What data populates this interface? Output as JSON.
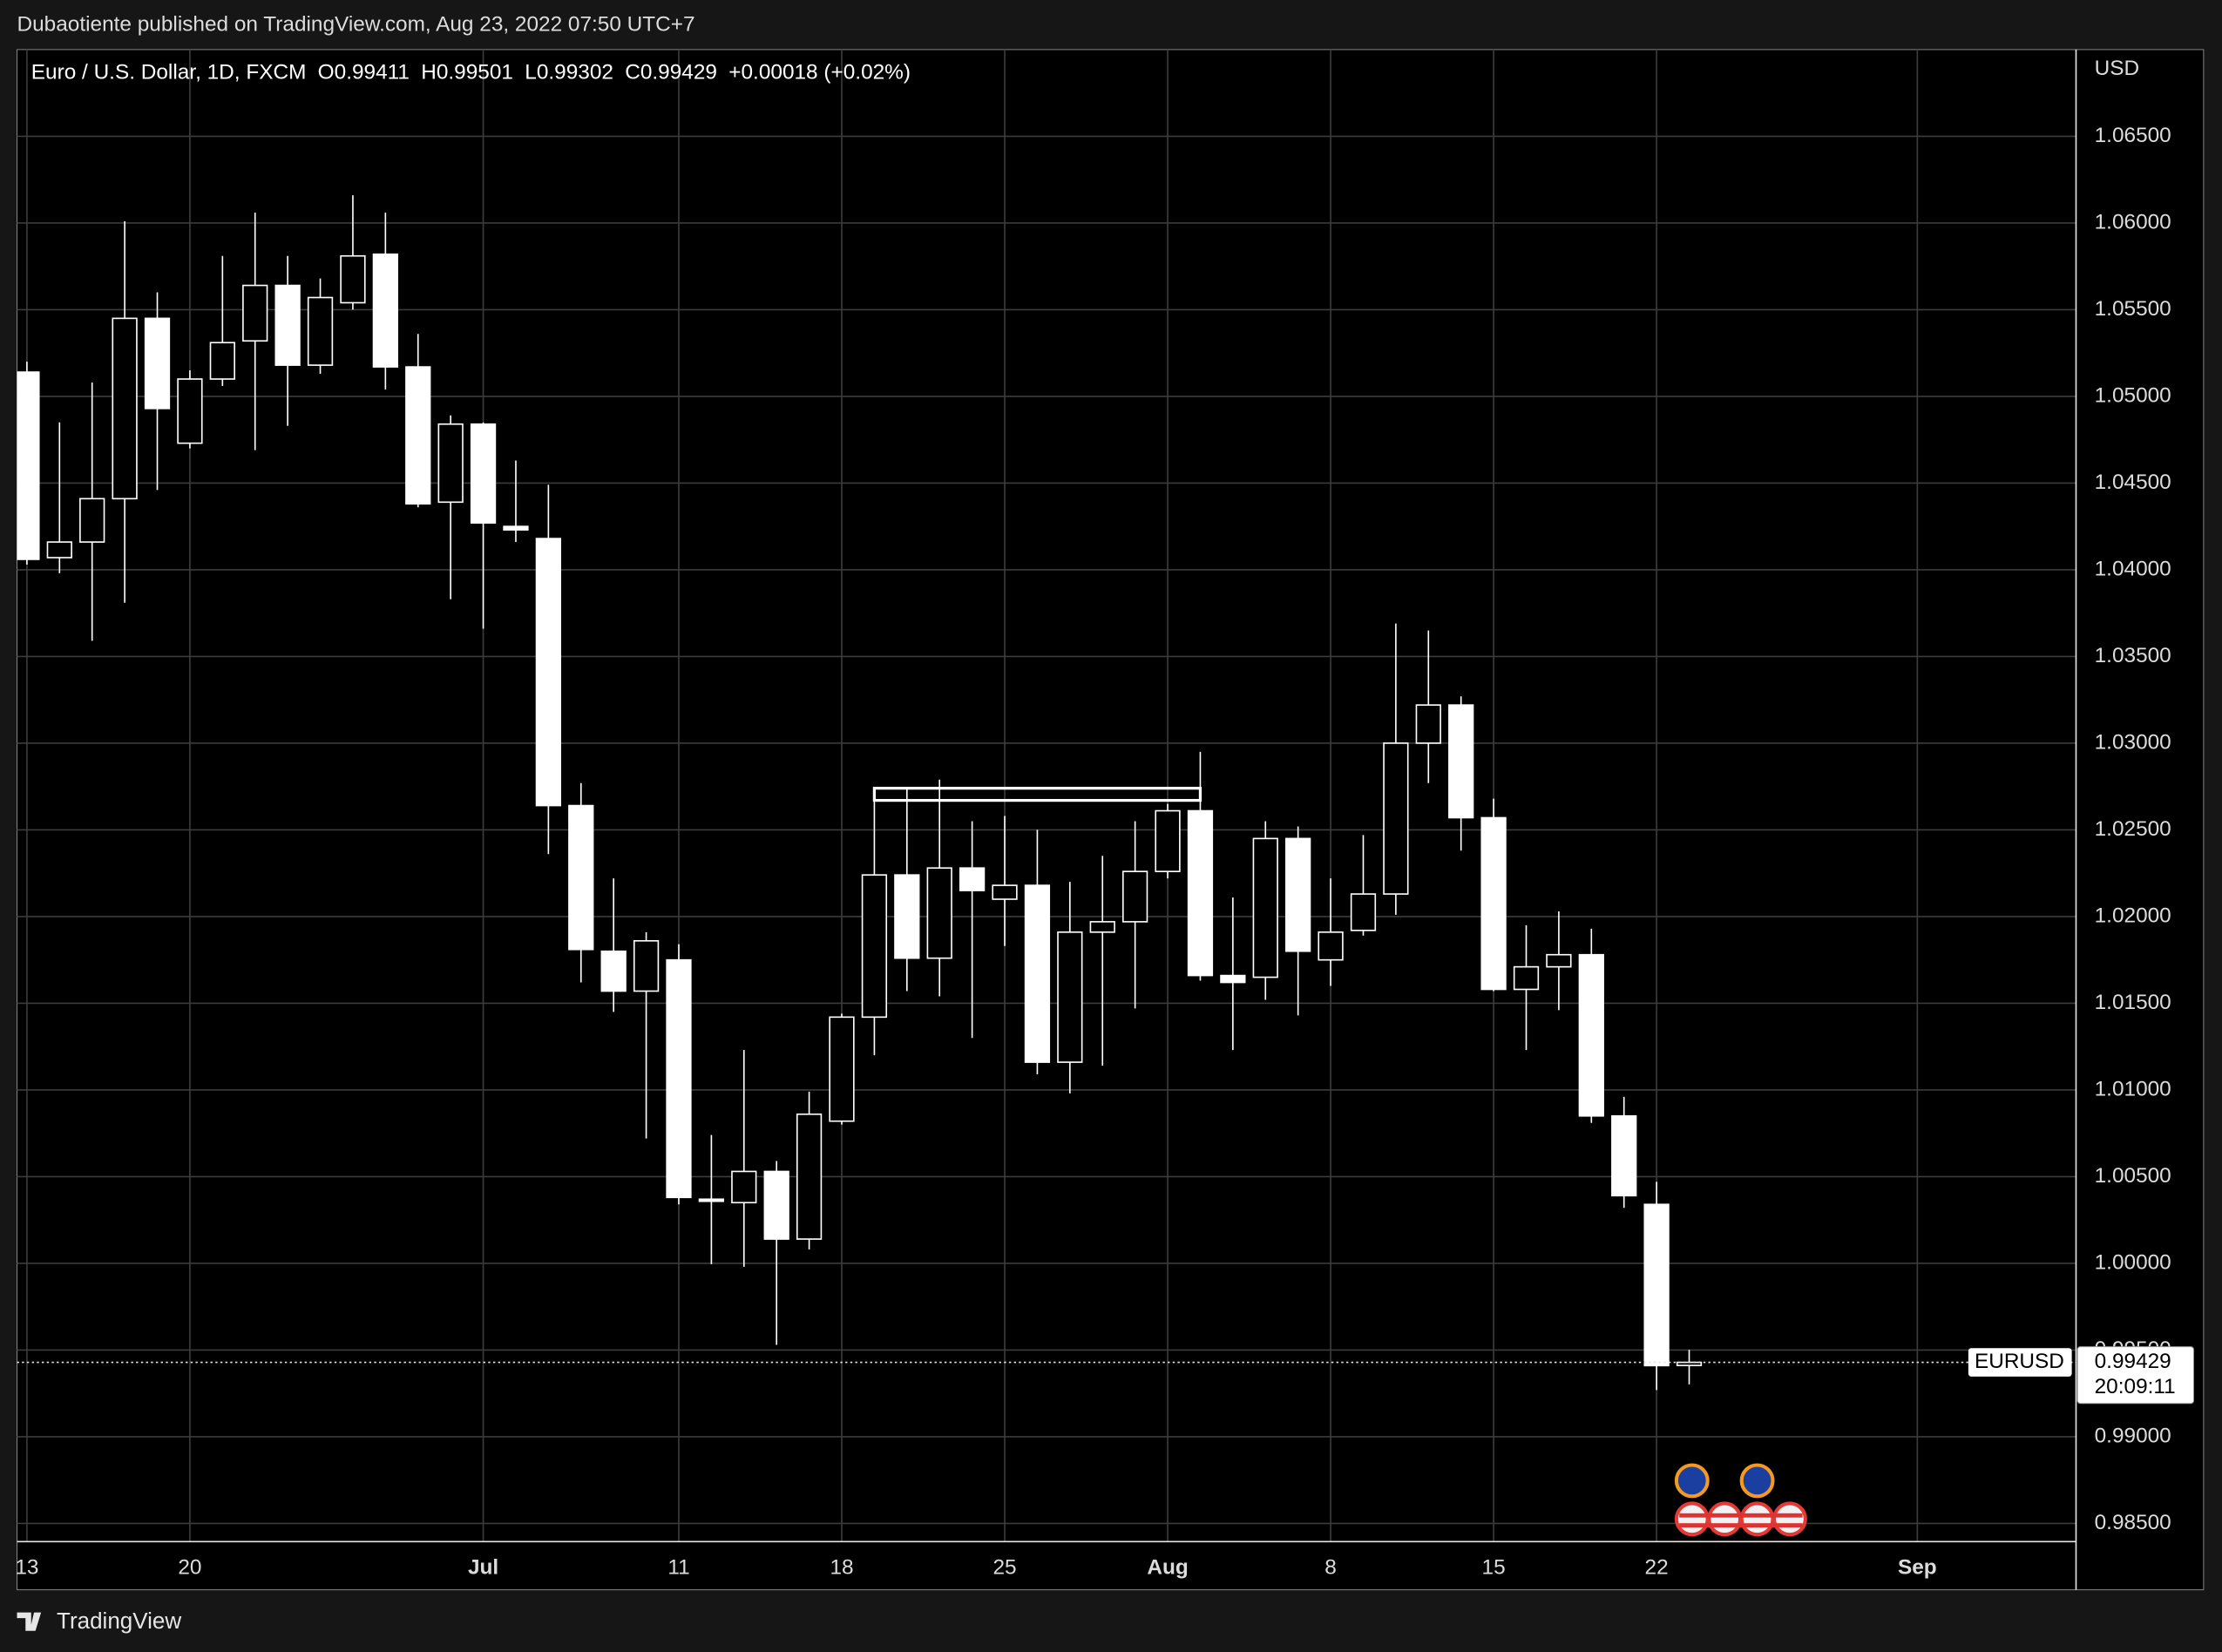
{
  "header": {
    "attribution": "Dubaotiente published on TradingView.com, Aug 23, 2022 07:50 UTC+7",
    "instrument": "Euro / U.S. Dollar, 1D, FXCM",
    "ohlc_labels": [
      "O",
      "H",
      "L",
      "C"
    ],
    "change": "+0.00018 (+0.02%)"
  },
  "chart_data": {
    "type": "candlestick",
    "categories": [
      "13",
      null,
      null,
      null,
      null,
      "20",
      null,
      null,
      null,
      null,
      null,
      null,
      null,
      null,
      "Jul",
      null,
      null,
      null,
      null,
      null,
      "11",
      null,
      null,
      null,
      null,
      "18",
      null,
      null,
      null,
      null,
      "25",
      null,
      null,
      null,
      null,
      "Aug",
      null,
      null,
      null,
      null,
      "8",
      null,
      null,
      null,
      null,
      "15",
      null,
      null,
      null,
      null,
      "22",
      null,
      null,
      null,
      null,
      null,
      null,
      null,
      "Sep"
    ],
    "open": [
      1.0514,
      1.0407,
      1.0416,
      1.0441,
      1.0545,
      1.0473,
      1.051,
      1.0532,
      1.0564,
      1.0518,
      1.0554,
      1.0582,
      1.0517,
      1.0439,
      1.0484,
      1.0425,
      1.0418,
      1.0264,
      1.018,
      1.0157,
      1.0175,
      1.0037,
      1.0035,
      1.0053,
      1.0014,
      1.0082,
      1.0142,
      1.0224,
      1.0176,
      1.0228,
      1.021,
      1.0218,
      1.0116,
      1.0191,
      1.0197,
      1.0226,
      1.0261,
      1.0166,
      1.0165,
      1.0245,
      1.0175,
      1.0192,
      1.0213,
      1.03,
      1.0322,
      1.0257,
      1.0158,
      1.0171,
      1.0178,
      1.0085,
      1.0034,
      0.99411,
      null,
      null,
      null,
      null,
      null,
      null,
      null
    ],
    "high": [
      1.052,
      1.0485,
      1.0508,
      1.0601,
      1.056,
      1.0515,
      1.0581,
      1.0606,
      1.0581,
      1.0568,
      1.0616,
      1.0606,
      1.0536,
      1.0489,
      1.0485,
      1.0463,
      1.0449,
      1.0277,
      1.0222,
      1.0191,
      1.0184,
      1.0074,
      1.0123,
      1.0059,
      1.0099,
      1.0144,
      1.0274,
      1.0274,
      1.0279,
      1.0255,
      1.0258,
      1.025,
      1.022,
      1.0235,
      1.0255,
      1.0265,
      1.0295,
      1.0211,
      1.0255,
      1.0252,
      1.0222,
      1.0247,
      1.0369,
      1.0365,
      1.0327,
      1.0268,
      1.0195,
      1.0203,
      1.0193,
      1.0096,
      1.0047,
      0.99501,
      null,
      null,
      null,
      null,
      null,
      null,
      null
    ],
    "low": [
      1.0403,
      1.0398,
      1.0359,
      1.0381,
      1.0446,
      1.047,
      1.0506,
      1.0469,
      1.0483,
      1.0513,
      1.055,
      1.0504,
      1.0436,
      1.0383,
      1.0366,
      1.0416,
      1.0236,
      1.0162,
      1.0145,
      1.0072,
      1.0034,
      0.99995,
      0.9998,
      0.9953,
      1.0008,
      1.008,
      1.012,
      1.0157,
      1.0154,
      1.013,
      1.0183,
      1.0109,
      1.0098,
      1.0114,
      1.0147,
      1.0222,
      1.0163,
      1.0123,
      1.0152,
      1.0143,
      1.016,
      1.0189,
      1.0201,
      1.0277,
      1.0238,
      1.0157,
      1.0123,
      1.0146,
      1.0081,
      1.0032,
      0.99269,
      0.99302,
      null,
      null,
      null,
      null,
      null,
      null,
      null
    ],
    "close": [
      1.0406,
      1.0416,
      1.0441,
      1.0545,
      1.0493,
      1.051,
      1.0531,
      1.0564,
      1.0518,
      1.0557,
      1.0581,
      1.0517,
      1.0438,
      1.0484,
      1.0427,
      1.0423,
      1.0264,
      1.0181,
      1.0157,
      1.0186,
      1.0038,
      1.0036,
      1.0053,
      1.0014,
      1.0086,
      1.0142,
      1.0224,
      1.0176,
      1.0228,
      1.0215,
      1.0218,
      1.0116,
      1.0191,
      1.0197,
      1.0226,
      1.0261,
      1.0166,
      1.0162,
      1.0245,
      1.018,
      1.0191,
      1.0213,
      1.03,
      1.0322,
      1.0257,
      1.0158,
      1.0171,
      1.0178,
      1.0085,
      1.0039,
      0.9941,
      0.99429,
      null,
      null,
      null,
      null,
      null,
      null,
      null
    ],
    "color": "#ffffff",
    "bullish_fill": "#000000",
    "y_axis_label": "USD",
    "ylim": [
      0.98395,
      1.07
    ],
    "yticks": [
      {
        "value": 0.985,
        "label": "0.98500"
      },
      {
        "value": 0.99,
        "label": "0.99000"
      },
      {
        "value": 0.995,
        "label": "0.99500"
      },
      {
        "value": 1.0,
        "label": "1.00000"
      },
      {
        "value": 1.005,
        "label": "1.00500"
      },
      {
        "value": 1.01,
        "label": "1.01000"
      },
      {
        "value": 1.015,
        "label": "1.01500"
      },
      {
        "value": 1.02,
        "label": "1.02000"
      },
      {
        "value": 1.025,
        "label": "1.02500"
      },
      {
        "value": 1.03,
        "label": "1.03000"
      },
      {
        "value": 1.035,
        "label": "1.03500"
      },
      {
        "value": 1.04,
        "label": "1.04000"
      },
      {
        "value": 1.045,
        "label": "1.04500"
      },
      {
        "value": 1.05,
        "label": "1.05000"
      },
      {
        "value": 1.055,
        "label": "1.05500"
      },
      {
        "value": 1.06,
        "label": "1.06000"
      },
      {
        "value": 1.065,
        "label": "1.06500"
      }
    ],
    "grid": true,
    "rectangle": {
      "x": [
        26,
        36
      ],
      "y": [
        1.0267,
        1.0274
      ]
    },
    "last_price": {
      "symbol": "EURUSD",
      "countdown": "20:09:11"
    }
  },
  "footer": {
    "brand": "TradingView"
  }
}
